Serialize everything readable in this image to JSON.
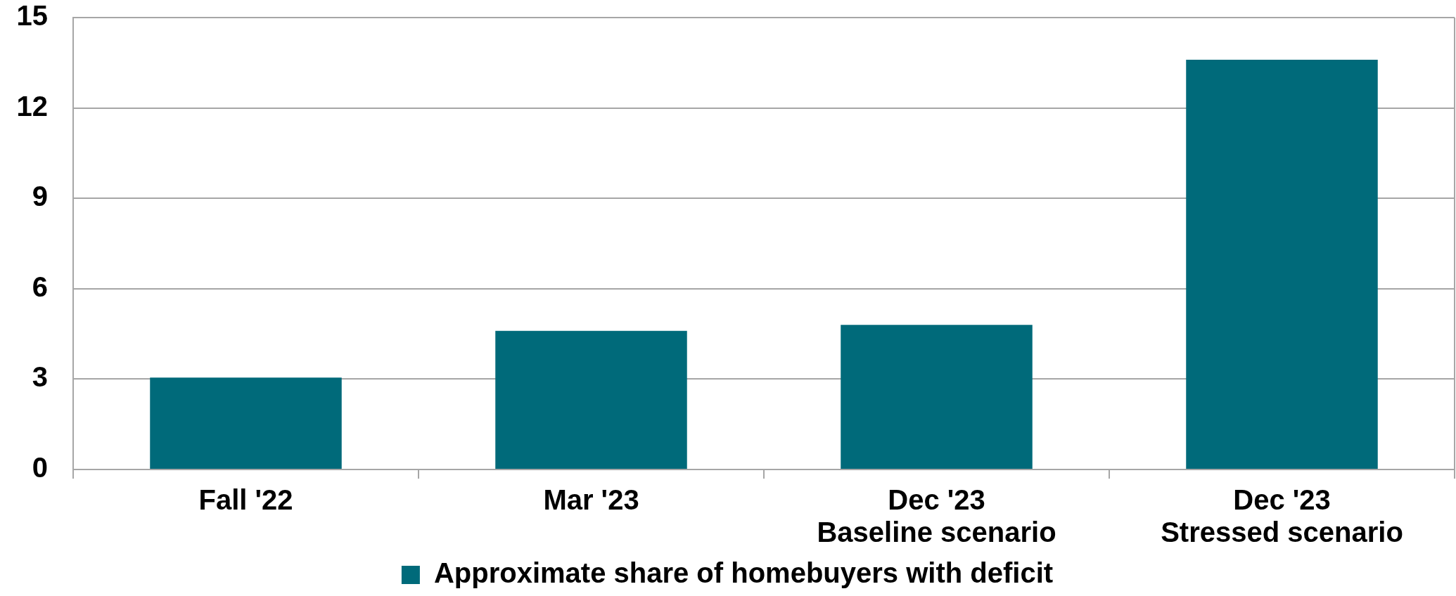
{
  "chart_data": {
    "type": "bar",
    "categories": [
      "Fall '22",
      "Mar '23",
      "Dec '23\nBaseline scenario",
      "Dec '23\nStressed scenario"
    ],
    "series": [
      {
        "name": "Approximate share of homebuyers with deficit",
        "color": "#006a7a",
        "values": [
          3.05,
          4.6,
          4.8,
          13.6
        ]
      }
    ],
    "ylim": [
      0,
      15
    ],
    "yticks": [
      0,
      3,
      6,
      9,
      12,
      15
    ],
    "grid": "y",
    "legend": "bottom"
  }
}
